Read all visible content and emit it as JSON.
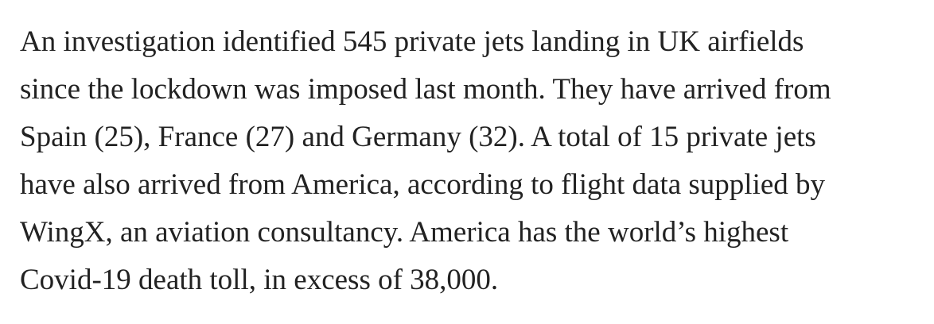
{
  "article": {
    "paragraph": {
      "lines": [
        "An investigation identified 545 private jets landing in UK airfields",
        "since the lockdown was imposed last month. They have arrived from",
        "Spain (25), France (27) and Germany (32). A total of 15 private jets",
        "have also arrived from America, according to flight data supplied by",
        "WingX, an aviation consultancy. America has the world’s highest",
        "Covid-19 death toll, in excess of 38,000."
      ]
    }
  }
}
